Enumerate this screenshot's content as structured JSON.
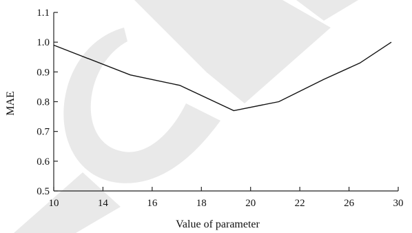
{
  "chart_data": {
    "type": "line",
    "xlabel": "Value of parameter",
    "ylabel": "MAE",
    "x_tick_labels": [
      "10",
      "14",
      "16",
      "18",
      "20",
      "22",
      "26",
      "30"
    ],
    "y_tick_labels": [
      "0.5",
      "0.6",
      "0.7",
      "0.8",
      "0.9",
      "1.0",
      "1.1"
    ],
    "ylim": [
      0.5,
      1.1
    ],
    "grid": false,
    "legend": "none",
    "series": [
      {
        "x": [
          "10",
          "14",
          "16",
          "18",
          "20",
          "22",
          "26",
          "30"
        ],
        "values": [
          0.99,
          0.89,
          0.855,
          0.77,
          0.8,
          0.875,
          0.93,
          1.0
        ],
        "note_positions": "points lie between tick marks on a categorical x axis"
      }
    ],
    "watermark_text": "ACCEPTED"
  },
  "colors": {
    "line": "#111111",
    "watermark": "#e6e6e6"
  }
}
